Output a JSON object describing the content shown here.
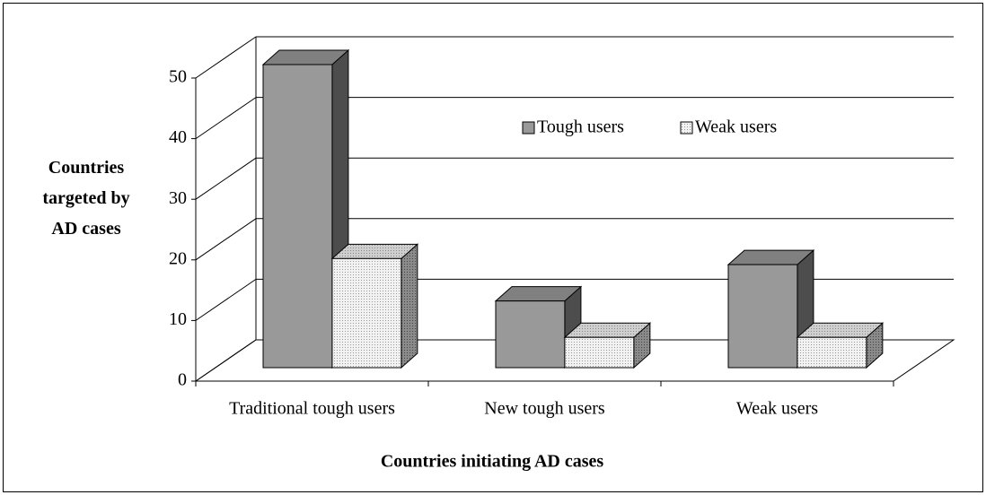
{
  "chart_data": {
    "type": "bar3d",
    "x_label": "Countries initiating AD cases",
    "y_label": "Countries targeted by AD cases",
    "categories": [
      "Traditional tough users",
      "New tough users",
      "Weak users"
    ],
    "series": [
      {
        "name": "Tough users",
        "color": "#999999",
        "values": [
          50,
          11,
          17
        ]
      },
      {
        "name": "Weak users",
        "color": "#e6e6e6",
        "values": [
          18,
          5,
          5
        ]
      }
    ],
    "ylim": [
      0,
      50
    ],
    "yticks": [
      0,
      10,
      20,
      30,
      40,
      50
    ],
    "grid": true
  }
}
